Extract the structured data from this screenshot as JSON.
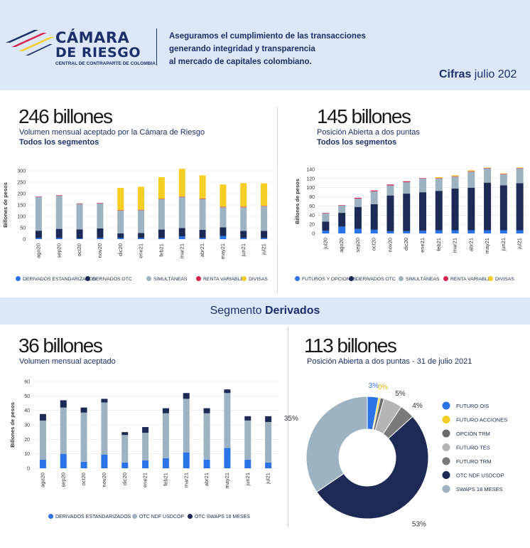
{
  "header": {
    "brand_line1": "CÁMARA",
    "brand_line2": "DE RIESGO",
    "brand_line3": "CENTRAL DE CONTRAPARTE DE COLOMBIA",
    "tagline": [
      "Aseguramos el cumplimiento de las transacciones",
      "generando integridad y transparencia",
      "al mercado de capitales colombiano."
    ],
    "cifras_bold": "Cifras",
    "cifras_rest": " julio 202"
  },
  "colors": {
    "blue": "#2a74e8",
    "navy": "#1d2a55",
    "gray_blue": "#9eb3c2",
    "red": "#d7264d",
    "yellow": "#f5cd24",
    "dark_gray": "#6a6a6a",
    "light_gray": "#b4b4b4",
    "mid_gray": "#888888"
  },
  "panels": {
    "p1": {
      "big": "246 billones",
      "sub": "Volumen mensual aceptado por la Cámara de Riesgo",
      "subb": "Todos los segmentos"
    },
    "p2": {
      "big": "145 billones",
      "sub": "Posición Abierta a dos puntas",
      "subb": "Todos los segmentos"
    },
    "band": {
      "pre": "Segmento ",
      "bold": "Derivados"
    },
    "p3": {
      "big": "36 billones",
      "sub": "Volumen mensual aceptado"
    },
    "p4": {
      "big": "113 billones",
      "sub": "Posición Abierta a dos puntas -   31 de julio  2021"
    }
  },
  "chart_data": [
    {
      "type": "bar",
      "stacked": true,
      "ylabel": "Billones de pesos",
      "ylim": [
        0,
        300
      ],
      "yticks": [
        0,
        50,
        100,
        150,
        200,
        250,
        300
      ],
      "categories": [
        "ago20",
        "sep20",
        "oct20",
        "nov20",
        "dic20",
        "ene21",
        "feb21",
        "mar21",
        "abr21",
        "may21",
        "jun21",
        "jul21"
      ],
      "series": [
        {
          "name": "DERIVADOS  ESTANDARIZADOS",
          "color": "#2a74e8",
          "values": [
            5,
            5,
            3,
            5,
            5,
            5,
            5,
            12,
            5,
            14,
            5,
            5
          ]
        },
        {
          "name": "DERIVADOS  OTC",
          "color": "#1d2a55",
          "values": [
            32,
            40,
            40,
            42,
            20,
            22,
            37,
            37,
            36,
            38,
            31,
            31
          ]
        },
        {
          "name": "SIMULTÁNEAS",
          "color": "#9eb3c2",
          "values": [
            148,
            146,
            112,
            110,
            100,
            100,
            133,
            136,
            135,
            88,
            104,
            108
          ]
        },
        {
          "name": "RENTA VARIABLE",
          "color": "#d7264d",
          "values": [
            2,
            2,
            2,
            2,
            2,
            2,
            2,
            2,
            2,
            2,
            2,
            2
          ]
        },
        {
          "name": "DIVISAS",
          "color": "#f5cd24",
          "values": [
            0,
            0,
            0,
            0,
            98,
            101,
            95,
            122,
            102,
            98,
            104,
            99
          ]
        }
      ]
    },
    {
      "type": "bar",
      "stacked": true,
      "ylabel": "Billones de pesos",
      "ylim": [
        0,
        140
      ],
      "yticks": [
        0,
        20,
        40,
        60,
        80,
        100,
        120,
        140
      ],
      "categories": [
        "jul20",
        "ago20",
        "sep20",
        "oct20",
        "nov20",
        "dic20",
        "ene21",
        "feb21",
        "mar21",
        "abr21",
        "may21",
        "jun21",
        "jul21"
      ],
      "series": [
        {
          "name": "FUTUROS Y OPCIONES",
          "color": "#2a74e8",
          "values": [
            6,
            15,
            10,
            8,
            5,
            5,
            6,
            7,
            7,
            7,
            7,
            7,
            7
          ]
        },
        {
          "name": "DERIVADOS OTC",
          "color": "#1d2a55",
          "values": [
            20,
            30,
            48,
            56,
            78,
            82,
            84,
            86,
            91,
            93,
            104,
            98,
            103
          ]
        },
        {
          "name": "SIMULTÁNEAS",
          "color": "#9eb3c2",
          "values": [
            18,
            16,
            18,
            28,
            22,
            25,
            30,
            27,
            26,
            35,
            31,
            24,
            32
          ]
        },
        {
          "name": "RENTA VARIABLE",
          "color": "#d7264d",
          "values": [
            1,
            1,
            2,
            2,
            2,
            2,
            1,
            1,
            1,
            1,
            1,
            1,
            1
          ]
        },
        {
          "name": "DIVISAS",
          "color": "#f5cd24",
          "values": [
            0,
            0,
            0,
            0,
            0,
            0,
            0,
            2,
            2,
            2,
            1,
            1,
            1
          ]
        }
      ]
    },
    {
      "type": "bar",
      "stacked": true,
      "ylabel": "Billones de pesos",
      "ylim": [
        0,
        60
      ],
      "yticks": [
        0,
        10,
        20,
        30,
        40,
        50,
        60
      ],
      "categories": [
        "ago20",
        "sep20",
        "oct20",
        "nov20",
        "dic20",
        "ene21",
        "feb21",
        "mar21",
        "abr21",
        "may21",
        "jun21",
        "jul21"
      ],
      "series": [
        {
          "name": "DERIVADOS ESTANDARIZADOS",
          "color": "#2a74e8",
          "values": [
            6,
            10,
            4.5,
            9.5,
            4,
            5.5,
            7,
            11,
            6,
            14,
            6,
            4
          ]
        },
        {
          "name": "OTC NDF USDCOP",
          "color": "#9eb3c2",
          "values": [
            27,
            32,
            34,
            36,
            19,
            19,
            31,
            37,
            32,
            38,
            27,
            28
          ]
        },
        {
          "name": "OTC SWAPS 18 MESES",
          "color": "#1d2a55",
          "values": [
            4.5,
            5,
            3.5,
            2.5,
            2,
            4,
            3.5,
            4,
            3.5,
            2.5,
            3,
            4
          ]
        }
      ]
    },
    {
      "type": "pie",
      "donut": true,
      "slices": [
        {
          "name": "FUTURO OIS",
          "label": "3%",
          "value": 3,
          "color": "#2a74e8"
        },
        {
          "name": "FUTURO ACCIONES",
          "label": "0%",
          "value": 0.5,
          "color": "#f5cd24"
        },
        {
          "name": "OPCIÓN TRM",
          "label": "",
          "value": 1,
          "color": "#6a6a6a"
        },
        {
          "name": "FUTURO TES",
          "label": "5%",
          "value": 5,
          "color": "#b4b4b4"
        },
        {
          "name": "FUTURO TRM",
          "label": "4%",
          "value": 4,
          "color": "#7a7a7a"
        },
        {
          "name": "OTC NDF USDCOP",
          "label": "53%",
          "value": 53,
          "color": "#1d2a55"
        },
        {
          "name": "SWAPS 18 MESES",
          "label": "35%",
          "value": 35,
          "color": "#9eb3c2"
        }
      ]
    }
  ]
}
